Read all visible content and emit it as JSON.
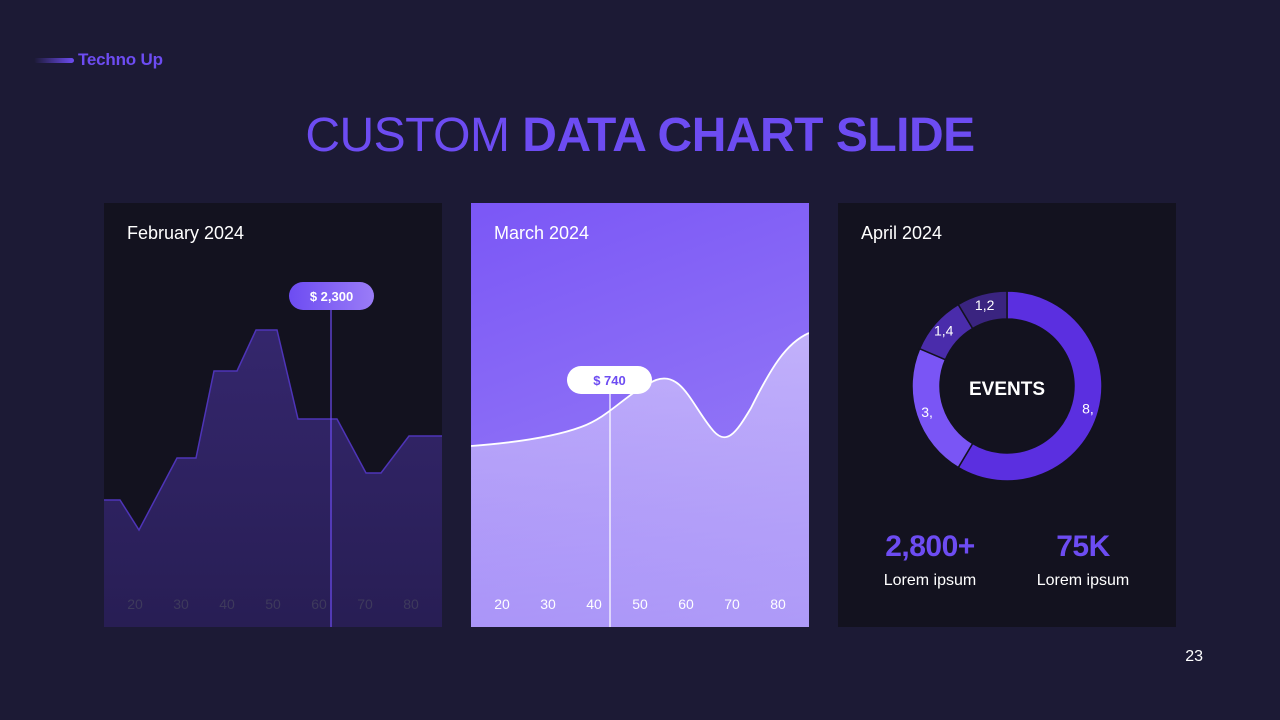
{
  "brand": {
    "name": "Techno Up",
    "accent": "#6d4cf2"
  },
  "title": {
    "light": "CUSTOM",
    "bold": "DATA CHART SLIDE"
  },
  "page_number": "23",
  "colors": {
    "background": "#1c1a35",
    "card_dark": "#13121f",
    "accent": "#6d4cf2",
    "donut_main": "#5b2fe0",
    "donut_second": "#7a55f5",
    "donut_small": "#4a2cab",
    "donut_tiny": "#3a2480"
  },
  "chart_data": [
    {
      "type": "area",
      "title": "February 2024",
      "x_tick_labels": [
        "20",
        "30",
        "40",
        "50",
        "60",
        "70",
        "80"
      ],
      "callout": {
        "label": "$ 2,300"
      }
    },
    {
      "type": "area",
      "title": "March 2024",
      "x_tick_labels": [
        "20",
        "30",
        "40",
        "50",
        "60",
        "70",
        "80"
      ],
      "callout": {
        "label": "$ 740"
      }
    },
    {
      "type": "pie",
      "title": "April 2024",
      "center_label": "EVENTS",
      "slices": [
        {
          "label": "8,",
          "value": 8.2
        },
        {
          "label": "3,",
          "value": 3.2
        },
        {
          "label": "1,4",
          "value": 1.4
        },
        {
          "label": "1,2",
          "value": 1.2
        }
      ]
    }
  ],
  "stats": [
    {
      "value": "2,800+",
      "label": "Lorem ipsum"
    },
    {
      "value": "75K",
      "label": "Lorem ipsum"
    }
  ]
}
